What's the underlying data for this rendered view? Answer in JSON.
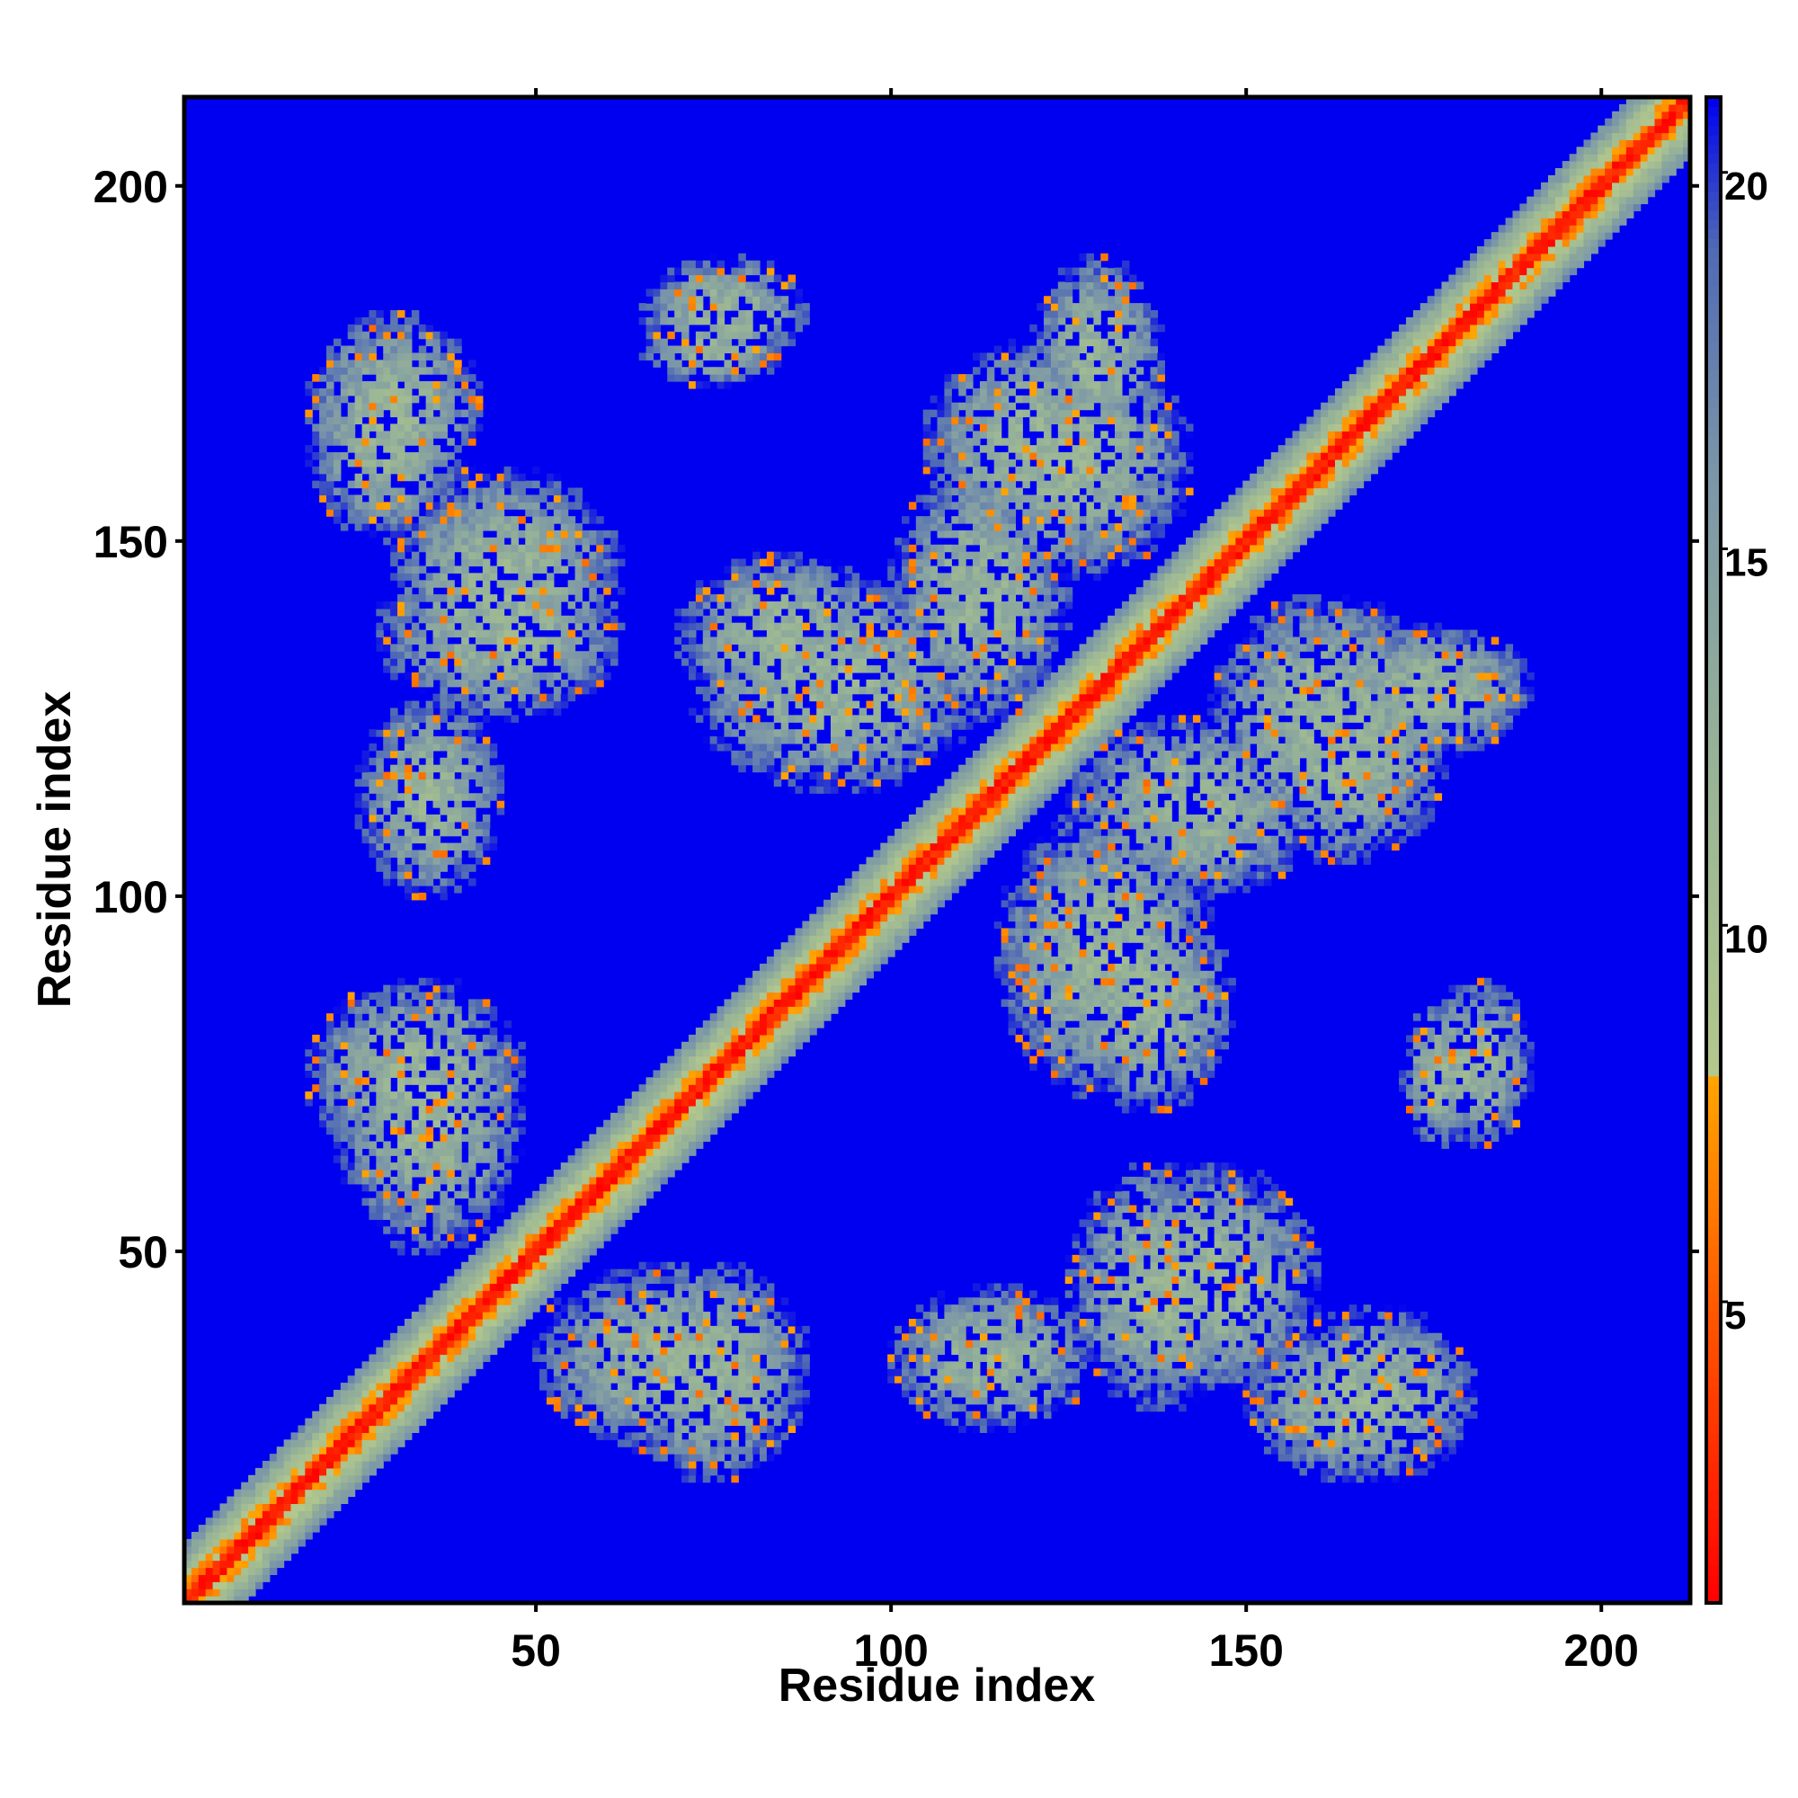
{
  "chart_data": {
    "type": "heatmap",
    "title": "",
    "xlabel": "Residue index",
    "ylabel": "Residue index",
    "xlim": [
      1,
      212
    ],
    "ylim": [
      1,
      212
    ],
    "x_ticks": [
      50,
      100,
      150,
      200
    ],
    "y_ticks": [
      50,
      100,
      150,
      200
    ],
    "x_tick_labels": [
      "50",
      "100",
      "150",
      "200"
    ],
    "y_tick_labels": [
      "50",
      "100",
      "150",
      "200"
    ],
    "value_range": [
      1,
      21
    ],
    "colorbar_ticks": [
      5,
      10,
      15,
      20
    ],
    "colorbar_tick_labels": [
      "5",
      "10",
      "15",
      "20"
    ],
    "colorscale": [
      {
        "value": 1,
        "color": "#ff0000"
      },
      {
        "value": 5,
        "color": "#ff5a00"
      },
      {
        "value": 8,
        "color": "#ffa500"
      },
      {
        "value": 8.01,
        "color": "#b4c88c"
      },
      {
        "value": 12,
        "color": "#98b496"
      },
      {
        "value": 16,
        "color": "#7b96a8"
      },
      {
        "value": 19,
        "color": "#4f6ab4"
      },
      {
        "value": 21,
        "color": "#0000f0"
      }
    ],
    "background_value": 21,
    "diagonal_band": {
      "core_value": 1,
      "halfwidth_residues": 8
    },
    "contact_clusters": [
      {
        "x": [
          18,
          42
        ],
        "y": [
          155,
          182
        ]
      },
      {
        "x": [
          28,
          62
        ],
        "y": [
          125,
          150
        ]
      },
      {
        "x": [
          18,
          48
        ],
        "y": [
          62,
          88
        ]
      },
      {
        "x": [
          50,
          88
        ],
        "y": [
          22,
          48
        ]
      },
      {
        "x": [
          65,
          88
        ],
        "y": [
          175,
          190
        ]
      },
      {
        "x": [
          72,
          112
        ],
        "y": [
          115,
          145
        ]
      },
      {
        "x": [
          108,
          142
        ],
        "y": [
          145,
          178
        ]
      },
      {
        "x": [
          125,
          160
        ],
        "y": [
          100,
          125
        ]
      },
      {
        "x": [
          125,
          148
        ],
        "y": [
          70,
          100
        ]
      },
      {
        "x": [
          150,
          178
        ],
        "y": [
          105,
          135
        ]
      },
      {
        "x": [
          162,
          190
        ],
        "y": [
          120,
          138
        ]
      },
      {
        "x": [
          172,
          182
        ],
        "y": [
          65,
          85
        ]
      },
      {
        "x": [
          130,
          160
        ],
        "y": [
          30,
          62
        ]
      },
      {
        "x": [
          150,
          180
        ],
        "y": [
          18,
          40
        ]
      },
      {
        "x": [
          100,
          128
        ],
        "y": [
          25,
          45
        ]
      }
    ]
  }
}
